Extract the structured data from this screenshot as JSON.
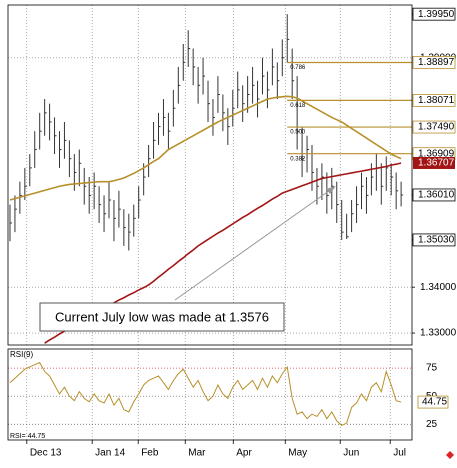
{
  "chart_data": {
    "type": "ohlc",
    "xlim": [
      -0.4,
      81.2
    ],
    "xticks": [
      {
        "value": 3.4,
        "label": "Dec 13"
      },
      {
        "value": 16.6,
        "label": "Jan 14"
      },
      {
        "value": 25.9,
        "label": "Feb"
      },
      {
        "value": 35.4,
        "label": "Mar"
      },
      {
        "value": 45.1,
        "label": "Apr"
      },
      {
        "value": 55.6,
        "label": "May"
      },
      {
        "value": 66.7,
        "label": "Jun"
      },
      {
        "value": 76.8,
        "label": "Jul"
      }
    ],
    "ylim": [
      1.3274,
      1.4015
    ],
    "yticks": [
      {
        "value": 1.33,
        "label": "1.33000"
      },
      {
        "value": 1.34,
        "label": "1.34000"
      },
      {
        "value": 1.39,
        "label": "1.39000"
      }
    ],
    "grid": true,
    "bar_color": "#333333",
    "high": [
      1.358,
      1.36,
      1.363,
      1.366,
      1.369,
      1.374,
      1.378,
      1.381,
      1.38,
      1.377,
      1.374,
      1.376,
      1.372,
      1.369,
      1.37,
      1.366,
      1.364,
      1.365,
      1.362,
      1.36,
      1.363,
      1.359,
      1.361,
      1.357,
      1.356,
      1.358,
      1.362,
      1.367,
      1.371,
      1.376,
      1.378,
      1.381,
      1.378,
      1.383,
      1.388,
      1.393,
      1.396,
      1.392,
      1.388,
      1.39,
      1.385,
      1.381,
      1.386,
      1.382,
      1.379,
      1.383,
      1.387,
      1.384,
      1.386,
      1.388,
      1.385,
      1.39,
      1.387,
      1.392,
      1.389,
      1.394,
      1.3995,
      1.392,
      1.386,
      1.375,
      1.373,
      1.371,
      1.366,
      1.367,
      1.365,
      1.366,
      1.363,
      1.359,
      1.356,
      1.359,
      1.362,
      1.365,
      1.364,
      1.367,
      1.369,
      1.367,
      1.3685,
      1.367,
      1.365,
      1.363
    ],
    "low": [
      1.35,
      1.352,
      1.356,
      1.359,
      1.362,
      1.366,
      1.37,
      1.373,
      1.372,
      1.369,
      1.366,
      1.368,
      1.364,
      1.361,
      1.362,
      1.358,
      1.356,
      1.357,
      1.354,
      1.352,
      1.355,
      1.35,
      1.353,
      1.349,
      1.348,
      1.351,
      1.355,
      1.36,
      1.364,
      1.368,
      1.371,
      1.373,
      1.37,
      1.375,
      1.38,
      1.385,
      1.388,
      1.384,
      1.38,
      1.382,
      1.376,
      1.373,
      1.378,
      1.374,
      1.371,
      1.375,
      1.379,
      1.376,
      1.378,
      1.38,
      1.377,
      1.382,
      1.379,
      1.384,
      1.381,
      1.386,
      1.389,
      1.381,
      1.37,
      1.364,
      1.365,
      1.361,
      1.358,
      1.359,
      1.356,
      1.357,
      1.354,
      1.3503,
      1.3505,
      1.352,
      1.354,
      1.357,
      1.356,
      1.36,
      1.361,
      1.358,
      1.361,
      1.36,
      1.357,
      1.3576
    ],
    "close": [
      1.354,
      1.357,
      1.36,
      1.362,
      1.366,
      1.37,
      1.374,
      1.378,
      1.376,
      1.373,
      1.37,
      1.372,
      1.368,
      1.365,
      1.367,
      1.362,
      1.36,
      1.362,
      1.358,
      1.356,
      1.359,
      1.355,
      1.357,
      1.353,
      1.352,
      1.355,
      1.359,
      1.364,
      1.368,
      1.372,
      1.375,
      1.377,
      1.374,
      1.379,
      1.384,
      1.389,
      1.392,
      1.388,
      1.384,
      1.386,
      1.38,
      1.377,
      1.382,
      1.378,
      1.375,
      1.379,
      1.383,
      1.38,
      1.382,
      1.384,
      1.381,
      1.386,
      1.383,
      1.388,
      1.385,
      1.39,
      1.394,
      1.385,
      1.374,
      1.368,
      1.37,
      1.365,
      1.362,
      1.364,
      1.36,
      1.362,
      1.358,
      1.352,
      1.351,
      1.356,
      1.358,
      1.362,
      1.36,
      1.364,
      1.366,
      1.362,
      1.366,
      1.364,
      1.361,
      1.3601
    ],
    "moving_averages": [
      {
        "color": "#b8902a",
        "values": [
          1.359,
          1.3593,
          1.3596,
          1.3599,
          1.3602,
          1.3605,
          1.3608,
          1.3611,
          1.3614,
          1.3617,
          1.362,
          1.3622,
          1.3624,
          1.3625,
          1.3626,
          1.3627,
          1.3628,
          1.3629,
          1.363,
          1.363,
          1.363,
          1.3632,
          1.3635,
          1.3638,
          1.3643,
          1.3648,
          1.3654,
          1.366,
          1.3667,
          1.3674,
          1.368,
          1.369,
          1.37,
          1.3706,
          1.3712,
          1.3718,
          1.3724,
          1.373,
          1.3736,
          1.3742,
          1.3748,
          1.3754,
          1.376,
          1.3765,
          1.377,
          1.3775,
          1.378,
          1.3785,
          1.379,
          1.3795,
          1.38,
          1.3805,
          1.381,
          1.3812,
          1.3814,
          1.3815,
          1.3816,
          1.3815,
          1.3812,
          1.3806,
          1.38,
          1.3794,
          1.3788,
          1.3782,
          1.3776,
          1.377,
          1.3765,
          1.376,
          1.3753,
          1.3746,
          1.3739,
          1.3732,
          1.3725,
          1.3718,
          1.3711,
          1.3704,
          1.3697,
          1.369,
          1.3685,
          1.368
        ]
      },
      {
        "color": "#a31515",
        "values": [
          null,
          null,
          null,
          null,
          null,
          null,
          null,
          1.3278,
          1.3285,
          1.3291,
          1.3298,
          1.3304,
          1.3311,
          1.3317,
          1.3324,
          1.333,
          1.3337,
          1.3343,
          1.335,
          1.3355,
          1.3361,
          1.3366,
          1.3372,
          1.3377,
          1.3383,
          1.3388,
          1.3394,
          1.3399,
          1.3405,
          1.3413,
          1.3422,
          1.343,
          1.3439,
          1.3447,
          1.3456,
          1.3464,
          1.3473,
          1.3481,
          1.349,
          1.3497,
          1.3504,
          1.3511,
          1.3518,
          1.3524,
          1.3531,
          1.3538,
          1.3545,
          1.3552,
          1.3558,
          1.3565,
          1.3572,
          1.3578,
          1.3585,
          1.3592,
          1.3598,
          1.3605,
          1.3609,
          1.3613,
          1.3617,
          1.3621,
          1.3625,
          1.3629,
          1.3633,
          1.3637,
          1.3639,
          1.3641,
          1.3643,
          1.3645,
          1.3647,
          1.3649,
          1.3651,
          1.3653,
          1.3655,
          1.3657,
          1.3659,
          1.3661,
          1.3663,
          1.3666,
          1.3668,
          1.36707
        ]
      }
    ],
    "fib_start": 56,
    "fib_color": "#b8902a",
    "fib_levels": [
      {
        "value": 1.38897,
        "label": "1.38897",
        "ratio": "0.786"
      },
      {
        "value": 1.38071,
        "label": "1.38071",
        "ratio": "0.618"
      },
      {
        "value": 1.3749,
        "label": "1.37490",
        "ratio": "0.500"
      },
      {
        "value": 1.36909,
        "label": "1.36909",
        "ratio": "0.382"
      }
    ],
    "price_levels": [
      {
        "value": 1.3995,
        "label": "1.39950"
      },
      {
        "value": 1.3601,
        "label": "1.36010"
      },
      {
        "value": 1.3503,
        "label": "1.35030"
      }
    ],
    "ma_level": {
      "value": 1.36707,
      "label": "1.36707"
    },
    "annotation": "Current July low was made at 1.3576",
    "rsi": {
      "title": "RSI(9)",
      "readout": "RSI= 44.75",
      "color": "#b8902a",
      "ylim": [
        11,
        92
      ],
      "yticks": [
        25,
        50,
        75
      ],
      "values": [
        62,
        66,
        70,
        74,
        76,
        78,
        80,
        72,
        68,
        60,
        52,
        58,
        50,
        46,
        54,
        48,
        45,
        52,
        46,
        44,
        52,
        42,
        48,
        38,
        36,
        45,
        52,
        60,
        64,
        66,
        68,
        62,
        56,
        64,
        70,
        74,
        66,
        58,
        64,
        54,
        46,
        50,
        60,
        52,
        48,
        58,
        64,
        56,
        60,
        64,
        56,
        66,
        58,
        68,
        62,
        70,
        76,
        48,
        34,
        36,
        30,
        34,
        32,
        38,
        30,
        36,
        28,
        24,
        26,
        40,
        44,
        52,
        46,
        58,
        62,
        54,
        72,
        60,
        46,
        44.75
      ]
    }
  }
}
